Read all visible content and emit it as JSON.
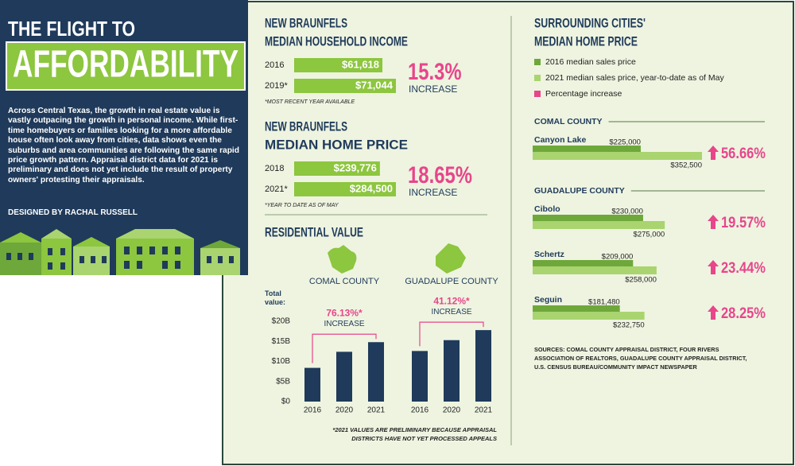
{
  "header": {
    "title_line1": "THE FLIGHT TO",
    "title_line2": "AFFORDABILITY",
    "intro": "Across Central Texas, the growth in real estate value is vastly outpacing the growth in personal income. While first-time homebuyers or families looking for a more affordable house often look away from cities, data shows even the suburbs and area communities are following the same rapid price growth pattern. Appraisal district data for 2021 is preliminary and does not yet include the result of property owners' protesting their appraisals.",
    "credit": "DESIGNED BY RACHAL RUSSELL"
  },
  "chart_data": [
    {
      "type": "hbar",
      "title": "NEW BRAUNFELS",
      "subtitle": "MEDIAN HOUSEHOLD INCOME",
      "categories": [
        "2016",
        "2019*"
      ],
      "values": [
        61618,
        71044
      ],
      "value_labels": [
        "$61,618",
        "$71,044"
      ],
      "color": "#8dc63f",
      "change_label": "15.3%",
      "change_text": "INCREASE",
      "note": "*MOST RECENT YEAR AVAILABLE"
    },
    {
      "type": "hbar",
      "title": "NEW BRAUNFELS",
      "subtitle": "MEDIAN HOME PRICE",
      "categories": [
        "2018",
        "2021*"
      ],
      "values": [
        239776,
        284500
      ],
      "value_labels": [
        "$239,776",
        "$284,500"
      ],
      "color": "#8dc63f",
      "change_label": "18.65%",
      "change_text": "INCREASE",
      "note": "*YEAR TO DATE AS OF MAY"
    },
    {
      "type": "grouped-bar",
      "title": "RESIDENTIAL VALUE",
      "ylabel": "Total value:",
      "ylim": [
        0,
        20
      ],
      "yticks": [
        {
          "value": 0,
          "label": "$0"
        },
        {
          "value": 5,
          "label": "$5B"
        },
        {
          "value": 10,
          "label": "$10B"
        },
        {
          "value": 15,
          "label": "$15B"
        },
        {
          "value": 20,
          "label": "$20B"
        }
      ],
      "color": "#1f3a5a",
      "groups": [
        {
          "name": "COMAL COUNTY",
          "categories": [
            "2016",
            "2020",
            "2021"
          ],
          "values": [
            8.4,
            12.4,
            14.8
          ],
          "change_label": "76.13%*",
          "change_text": "INCREASE"
        },
        {
          "name": "GUADALUPE COUNTY",
          "categories": [
            "2016",
            "2020",
            "2021"
          ],
          "values": [
            12.6,
            15.3,
            17.8
          ],
          "change_label": "41.12%*",
          "change_text": "INCREASE"
        }
      ],
      "note": [
        "*2021 VALUES ARE PRELIMINARY BECAUSE APPRAISAL",
        "DISTRICTS HAVE NOT YET PROCESSED APPEALS"
      ]
    },
    {
      "type": "paired-hbar",
      "title": "SURROUNDING CITIES'",
      "subtitle": "MEDIAN HOME PRICE",
      "series": [
        {
          "name": "2016 median sales price",
          "color": "#6ea83a"
        },
        {
          "name": "2021 median sales price, year-to-date as of May",
          "color": "#a9d46f"
        }
      ],
      "change_legend": {
        "name": "Percentage increase",
        "color": "#e8458b"
      },
      "sections": [
        {
          "name": "COMAL COUNTY",
          "categories": [
            "Canyon Lake"
          ],
          "series": [
            {
              "values": [
                225000
              ],
              "value_labels": [
                "$225,000"
              ]
            },
            {
              "values": [
                352500
              ],
              "value_labels": [
                "$352,500"
              ]
            }
          ],
          "change_labels": [
            "56.66%"
          ]
        },
        {
          "name": "GUADALUPE COUNTY",
          "categories": [
            "Cibolo",
            "Schertz",
            "Seguin"
          ],
          "series": [
            {
              "values": [
                230000,
                209000,
                181480
              ],
              "value_labels": [
                "$230,000",
                "$209,000",
                "$181,480"
              ]
            },
            {
              "values": [
                275000,
                258000,
                232750
              ],
              "value_labels": [
                "$275,000",
                "$258,000",
                "$232,750"
              ]
            }
          ],
          "change_labels": [
            "19.57%",
            "23.44%",
            "28.25%"
          ]
        }
      ]
    }
  ],
  "sources": [
    "SOURCES: COMAL COUNTY APPRAISAL DISTRICT, FOUR RIVERS",
    "ASSOCIATION OF REALTORS, GUADALUPE COUNTY APPRAISAL DISTRICT,",
    "U.S. CENSUS BUREAU/COMMUNITY IMPACT NEWSPAPER"
  ]
}
